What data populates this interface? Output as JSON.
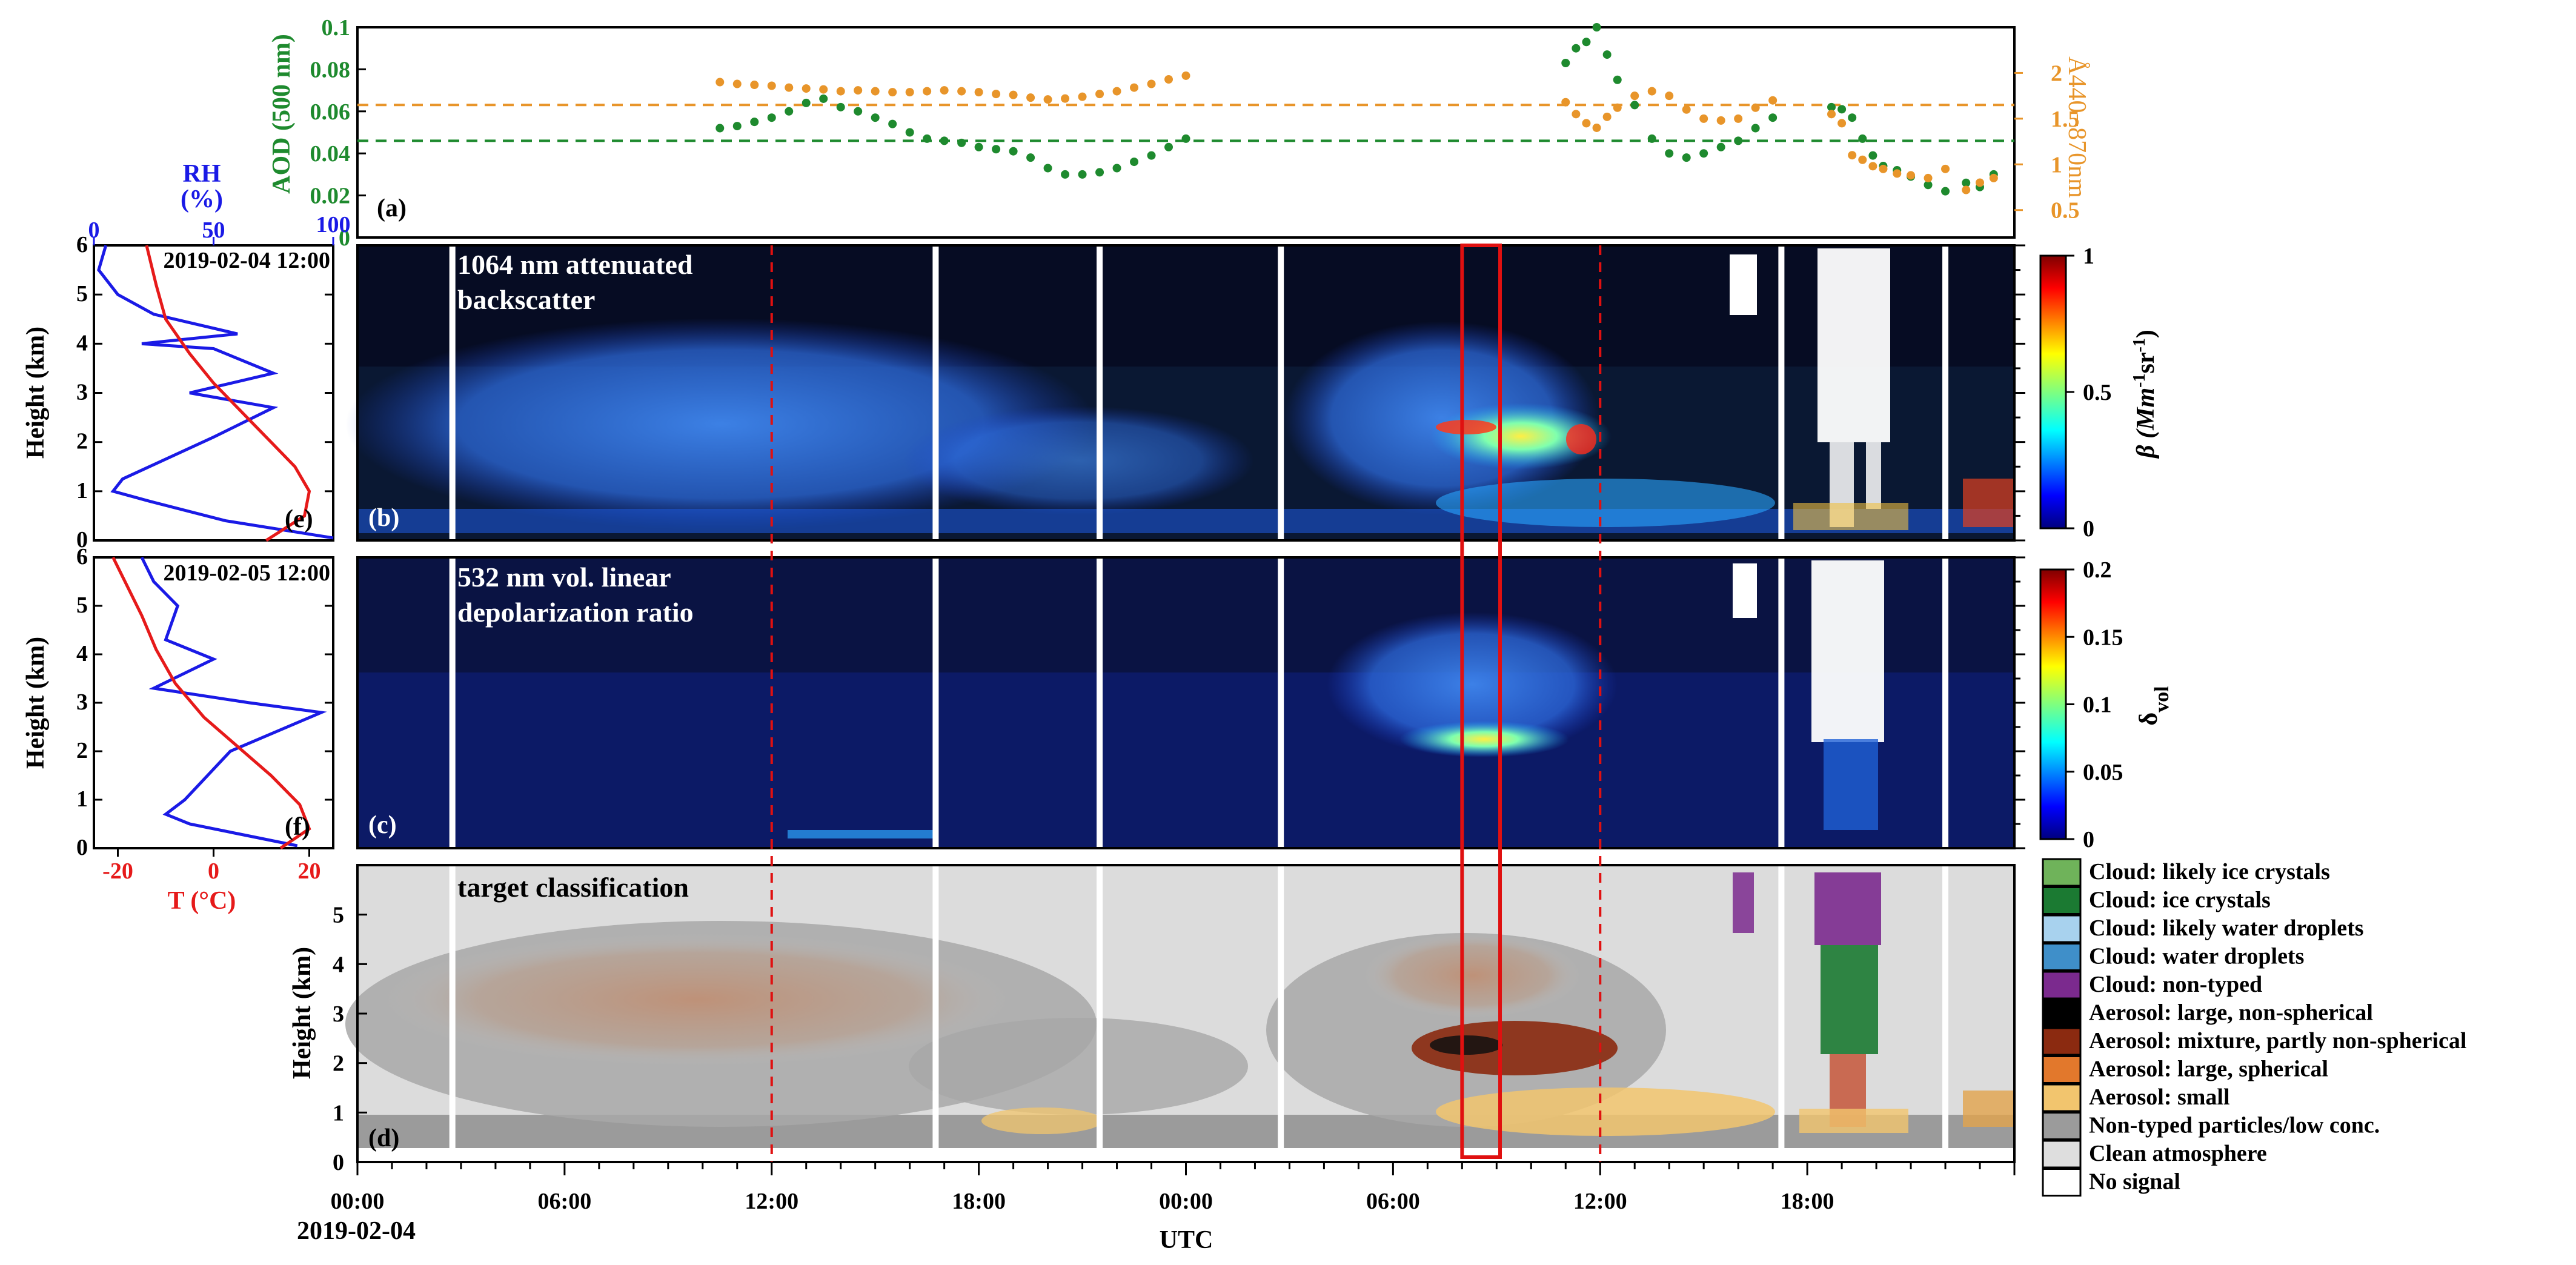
{
  "chart_data": {
    "time_axis": {
      "tick_labels": [
        "00:00",
        "06:00",
        "12:00",
        "18:00",
        "00:00",
        "06:00",
        "12:00",
        "18:00"
      ],
      "tick_hours": [
        0,
        6,
        12,
        18,
        24,
        30,
        36,
        42
      ],
      "range_hours": [
        0,
        48
      ],
      "date_label": "2019-02-04",
      "xlabel": "UTC",
      "red_dashed_lines_hours": [
        12,
        36
      ],
      "highlight_box_hours": [
        32,
        33.1
      ],
      "data_gaps_hours": [
        2.75,
        16.75,
        21.5,
        26.75,
        41.25,
        46
      ]
    },
    "panel_a": {
      "label": "(a)",
      "type": "scatter",
      "ylabel_left": "AOD (500 nm)",
      "ylabel_right": "Å440−870nm",
      "left_ticks": [
        "0",
        "0.02",
        "0.04",
        "0.06",
        "0.08",
        "0.1"
      ],
      "left_tick_values": [
        0,
        0.02,
        0.04,
        0.06,
        0.08,
        0.1
      ],
      "right_ticks": [
        "0.5",
        "1",
        "1.5",
        "2"
      ],
      "right_tick_values": [
        0.5,
        1,
        1.5,
        2
      ],
      "ylim_left": [
        0,
        0.1
      ],
      "ylim_right": [
        0.2,
        2.5
      ],
      "aod_mean": 0.046,
      "angstrom_mean": 1.65,
      "aod_color": "#1e8a2e",
      "angstrom_color": "#e8952a",
      "series": [
        {
          "name": "AOD (500 nm)",
          "color": "#1e8a2e",
          "x": [
            10.5,
            11.0,
            11.5,
            12.0,
            12.5,
            13.0,
            13.5,
            14.0,
            14.5,
            15.0,
            15.5,
            16.0,
            16.5,
            17.0,
            17.5,
            18.0,
            18.5,
            19.0,
            19.5,
            20.0,
            20.5,
            21.0,
            21.5,
            22.0,
            22.5,
            23.0,
            23.5,
            24.0,
            24.5,
            25.0,
            25.5,
            26.0,
            26.5,
            27.0,
            27.5,
            28.0,
            28.5,
            29.0,
            29.5,
            30.0,
            30.5,
            31.0,
            31.5,
            32.0,
            32.5,
            33.0,
            33.5,
            34.0,
            34.5,
            35.0,
            35.3,
            35.6,
            35.9,
            36.2,
            36.5,
            37.0,
            37.5,
            38.0,
            38.5,
            39.0,
            39.5,
            40.0,
            40.5,
            41.0,
            42.7,
            43.0,
            43.3,
            43.6,
            43.9,
            44.2,
            44.6,
            45.0,
            45.5,
            46.0,
            46.6,
            47.0,
            47.4
          ],
          "y": [
            0.052,
            0.053,
            0.055,
            0.057,
            0.06,
            0.064,
            0.066,
            0.062,
            0.06,
            0.057,
            0.054,
            0.05,
            0.047,
            0.046,
            0.045,
            0.043,
            0.042,
            0.041,
            0.038,
            0.033,
            0.03,
            0.03,
            0.031,
            0.033,
            0.036,
            0.039,
            0.043,
            0.047,
            null,
            null,
            null,
            null,
            null,
            null,
            null,
            null,
            null,
            null,
            null,
            null,
            null,
            null,
            null,
            null,
            null,
            null,
            null,
            null,
            null,
            0.083,
            0.09,
            0.093,
            0.1,
            0.087,
            0.075,
            0.063,
            0.047,
            0.04,
            0.038,
            0.04,
            0.043,
            0.046,
            0.052,
            0.057,
            0.062,
            0.061,
            0.057,
            0.047,
            0.039,
            0.034,
            0.032,
            0.029,
            0.025,
            0.022,
            0.026,
            0.024,
            0.03
          ]
        },
        {
          "name": "Å440−870nm",
          "color": "#e8952a",
          "x": [
            10.5,
            11.0,
            11.5,
            12.0,
            12.5,
            13.0,
            13.5,
            14.0,
            14.5,
            15.0,
            15.5,
            16.0,
            16.5,
            17.0,
            17.5,
            18.0,
            18.5,
            19.0,
            19.5,
            20.0,
            20.5,
            21.0,
            21.5,
            22.0,
            22.5,
            23.0,
            23.5,
            24.0,
            24.5,
            25.0,
            25.5,
            26.0,
            26.5,
            27.0,
            27.5,
            28.0,
            28.5,
            29.0,
            29.5,
            30.0,
            30.5,
            31.0,
            31.5,
            32.0,
            32.5,
            33.0,
            33.5,
            34.0,
            34.5,
            35.0,
            35.3,
            35.6,
            35.9,
            36.2,
            36.5,
            37.0,
            37.5,
            38.0,
            38.5,
            39.0,
            39.5,
            40.0,
            40.5,
            41.0,
            42.7,
            43.0,
            43.3,
            43.6,
            43.9,
            44.2,
            44.6,
            45.0,
            45.5,
            46.0,
            46.6,
            47.0,
            47.4
          ],
          "y": [
            1.9,
            1.88,
            1.87,
            1.86,
            1.84,
            1.83,
            1.82,
            1.8,
            1.81,
            1.8,
            1.79,
            1.79,
            1.8,
            1.81,
            1.8,
            1.79,
            1.77,
            1.76,
            1.73,
            1.71,
            1.72,
            1.74,
            1.77,
            1.8,
            1.84,
            1.88,
            1.93,
            1.97,
            null,
            null,
            null,
            null,
            null,
            null,
            null,
            null,
            null,
            null,
            null,
            null,
            null,
            null,
            null,
            null,
            null,
            null,
            null,
            null,
            null,
            1.68,
            1.55,
            1.45,
            1.4,
            1.52,
            1.62,
            1.75,
            1.8,
            1.75,
            1.6,
            1.5,
            1.48,
            1.5,
            1.62,
            1.7,
            1.55,
            1.45,
            1.1,
            1.05,
            0.98,
            0.95,
            0.9,
            0.88,
            0.85,
            0.95,
            0.72,
            0.8,
            0.85
          ]
        }
      ]
    },
    "panel_b": {
      "label": "(b)",
      "type": "heatmap",
      "title_line1": "1064 nm attenuated",
      "title_line2": "backscatter",
      "colorbar_label_main": "β (Mm",
      "colorbar_label_sup1": "-1",
      "colorbar_label_mid": "sr",
      "colorbar_label_sup2": "-1",
      "colorbar_label_end": ")",
      "colorbar_ticks": [
        "0",
        "0.5",
        "1"
      ],
      "colorbar_tick_values": [
        0,
        0.5,
        1
      ],
      "ylim_km": [
        0,
        6
      ]
    },
    "panel_c": {
      "label": "(c)",
      "type": "heatmap",
      "title_line1": "532 nm vol. linear",
      "title_line2": "depolarization ratio",
      "colorbar_label_main": "δ",
      "colorbar_label_sub": "vol",
      "colorbar_ticks": [
        "0",
        "0.05",
        "0.1",
        "0.15",
        "0.2"
      ],
      "colorbar_tick_values": [
        0,
        0.05,
        0.1,
        0.15,
        0.2
      ],
      "ylim_km": [
        0,
        6
      ]
    },
    "panel_d": {
      "label": "(d)",
      "type": "heatmap",
      "title": "target classification",
      "ylabel": "Height (km)",
      "y_ticks": [
        "0",
        "1",
        "2",
        "3",
        "4",
        "5"
      ],
      "y_tick_values": [
        0,
        1,
        2,
        3,
        4,
        5
      ],
      "ylim_km": [
        0,
        6
      ],
      "legend": [
        {
          "label": "Cloud: likely ice crystals",
          "color": "#6fb35a"
        },
        {
          "label": "Cloud: ice crystals",
          "color": "#1b7a32"
        },
        {
          "label": "Cloud: likely water droplets",
          "color": "#a8d2ee"
        },
        {
          "label": "Cloud: water droplets",
          "color": "#3f8fc9"
        },
        {
          "label": "Cloud: non-typed",
          "color": "#7b2a8e"
        },
        {
          "label": "Aerosol: large, non-spherical",
          "color": "#000000"
        },
        {
          "label": "Aerosol: mixture, partly non-spherical",
          "color": "#8b2a10"
        },
        {
          "label": "Aerosol: large, spherical",
          "color": "#e2782c"
        },
        {
          "label": "Aerosol: small",
          "color": "#f2c56e"
        },
        {
          "label": "Non-typed particles/low conc.",
          "color": "#9b9b9b"
        },
        {
          "label": "Clean atmosphere",
          "color": "#dedede"
        },
        {
          "label": "No signal",
          "color": "#ffffff"
        }
      ]
    },
    "panel_e": {
      "label": "(e)",
      "type": "line",
      "timestamp": "2019-02-04 12:00",
      "ylabel": "Height (km)",
      "y_ticks": [
        "0",
        "1",
        "2",
        "3",
        "4",
        "5",
        "6"
      ],
      "y_tick_values": [
        0,
        1,
        2,
        3,
        4,
        5,
        6
      ],
      "top_axis_title": "RH",
      "top_axis_unit": "(%)",
      "top_axis_ticks": [
        "0",
        "50",
        "100"
      ],
      "top_axis_tick_values": [
        0,
        50,
        100
      ],
      "rh_color": "#1a1ae6",
      "temp_color": "#e61a1a",
      "rh_profile": {
        "rh": [
          100,
          55,
          23,
          8,
          12,
          50,
          75,
          40,
          75,
          50,
          20,
          60,
          25,
          10,
          2,
          5
        ],
        "h": [
          0.05,
          0.4,
          0.8,
          1.0,
          1.25,
          2.1,
          2.7,
          3.0,
          3.4,
          3.9,
          4.0,
          4.2,
          4.6,
          5.0,
          5.5,
          6.0
        ]
      },
      "temp_profile": {
        "t": [
          11,
          19,
          20,
          17,
          12,
          6,
          0,
          -5,
          -10,
          -12,
          -14
        ],
        "h": [
          0.0,
          0.5,
          1.0,
          1.5,
          2.0,
          2.6,
          3.2,
          3.8,
          4.5,
          5.2,
          6.0
        ]
      }
    },
    "panel_f": {
      "label": "(f)",
      "type": "line",
      "timestamp": "2019-02-05 12:00",
      "ylabel": "Height (km)",
      "y_ticks": [
        "0",
        "1",
        "2",
        "3",
        "4",
        "5",
        "6"
      ],
      "y_tick_values": [
        0,
        1,
        2,
        3,
        4,
        5,
        6
      ],
      "xlabel": "T (°C)",
      "x_ticks": [
        "-20",
        "0",
        "20"
      ],
      "x_tick_values": [
        -20,
        0,
        20
      ],
      "rh_profile": {
        "rh": [
          85,
          60,
          40,
          30,
          38,
          57,
          95,
          65,
          25,
          50,
          30,
          35,
          25,
          20
        ],
        "h": [
          0.05,
          0.3,
          0.5,
          0.7,
          1.0,
          2.0,
          2.8,
          3.0,
          3.3,
          3.9,
          4.3,
          5.0,
          5.5,
          6.0
        ]
      },
      "temp_profile": {
        "t": [
          14,
          20,
          18,
          12,
          5,
          -2,
          -8,
          -12,
          -15,
          -18,
          -21
        ],
        "h": [
          0.0,
          0.4,
          0.9,
          1.5,
          2.1,
          2.7,
          3.4,
          4.1,
          4.8,
          5.4,
          6.0
        ]
      }
    }
  }
}
